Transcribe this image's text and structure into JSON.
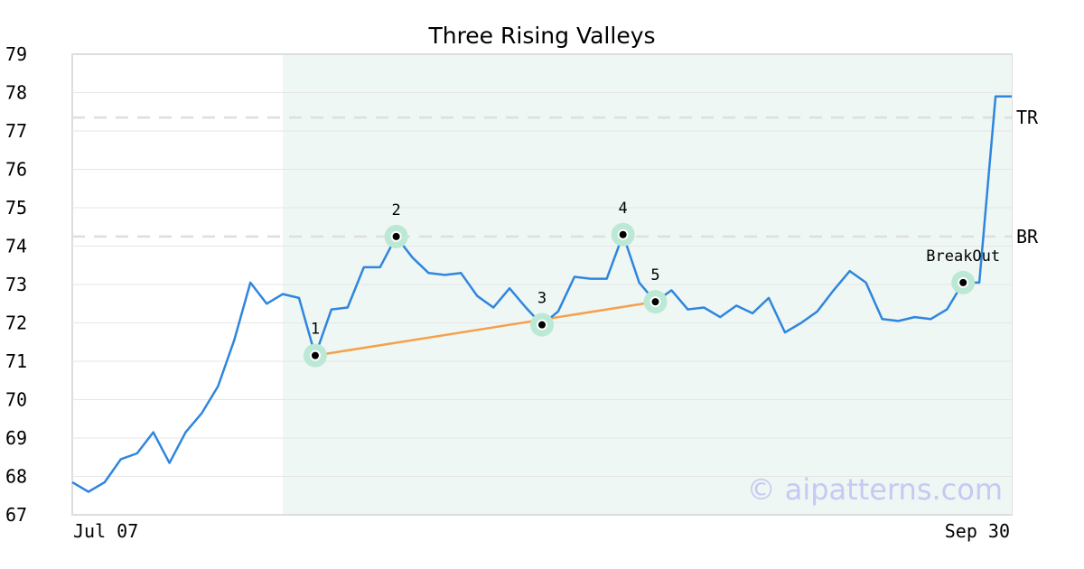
{
  "chart_data": {
    "type": "line",
    "title": "Three Rising Valleys",
    "ylim": [
      67,
      79
    ],
    "yticks": [
      67,
      68,
      69,
      70,
      71,
      72,
      73,
      74,
      75,
      76,
      77,
      78,
      79
    ],
    "xtick_labels": [
      "Jul 07",
      "Sep 30"
    ],
    "grid": true,
    "series": [
      {
        "color": "#2e86de",
        "values": [
          67.85,
          67.6,
          67.85,
          68.45,
          68.6,
          69.15,
          68.35,
          69.15,
          69.65,
          70.35,
          71.55,
          73.05,
          72.5,
          72.75,
          72.65,
          71.15,
          72.35,
          72.4,
          73.45,
          73.45,
          74.25,
          73.7,
          73.3,
          73.25,
          73.3,
          72.7,
          72.4,
          72.9,
          72.4,
          71.95,
          72.3,
          73.2,
          73.15,
          73.15,
          74.3,
          73.05,
          72.55,
          72.85,
          72.35,
          72.4,
          72.15,
          72.45,
          72.25,
          72.65,
          71.75,
          72.0,
          72.3,
          72.85,
          73.35,
          73.05,
          72.1,
          72.05,
          72.15,
          72.1,
          72.35,
          73.05,
          73.05,
          77.9,
          77.9
        ]
      }
    ],
    "highlight_range": {
      "start": 13,
      "end": 58,
      "color": "#eef7f3"
    },
    "levels": [
      {
        "label": "TR",
        "value": 77.35
      },
      {
        "label": "BR",
        "value": 74.25
      }
    ],
    "points": [
      {
        "label": "1",
        "index": 15,
        "value": 71.15
      },
      {
        "label": "2",
        "index": 20,
        "value": 74.25
      },
      {
        "label": "3",
        "index": 29,
        "value": 71.95
      },
      {
        "label": "4",
        "index": 34,
        "value": 74.3
      },
      {
        "label": "5",
        "index": 36,
        "value": 72.55
      },
      {
        "label": "BreakOut",
        "index": 55,
        "value": 73.05
      }
    ],
    "trendline": {
      "color": "#f5a04a",
      "points": [
        [
          15,
          71.15
        ],
        [
          36,
          72.55
        ]
      ]
    },
    "watermark": "© aipatterns.com"
  }
}
